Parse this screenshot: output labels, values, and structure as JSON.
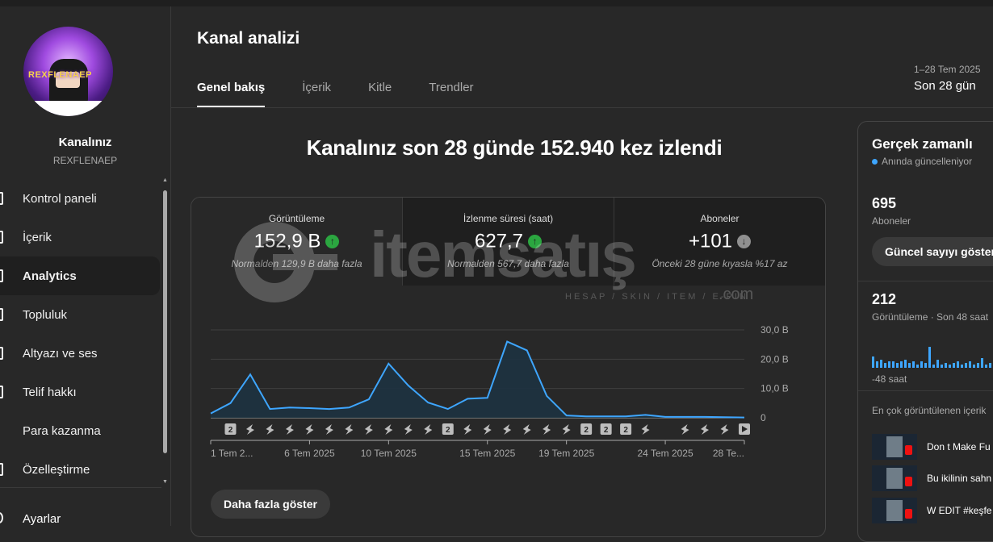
{
  "sidebar": {
    "channel_title": "Kanalınız",
    "channel_handle": "REXFLENAEP",
    "avatar_watermark": "REXFLENAEP",
    "items": [
      {
        "label": "Kontrol paneli"
      },
      {
        "label": "İçerik"
      },
      {
        "label": "Analytics"
      },
      {
        "label": "Topluluk"
      },
      {
        "label": "Altyazı ve ses"
      },
      {
        "label": "Telif hakkı"
      },
      {
        "label": "Para kazanma"
      },
      {
        "label": "Özelleştirme"
      }
    ],
    "active_item": "Analytics",
    "settings_label": "Ayarlar"
  },
  "header": {
    "title": "Kanal analizi",
    "tabs": [
      {
        "label": "Genel bakış",
        "active": true
      },
      {
        "label": "İçerik",
        "active": false
      },
      {
        "label": "Kitle",
        "active": false
      },
      {
        "label": "Trendler",
        "active": false
      }
    ],
    "date_range": "1–28 Tem 2025",
    "date_label": "Son 28 gün"
  },
  "overview": {
    "headline": "Kanalınız son 28 günde 152.940 kez izlendi",
    "metrics": [
      {
        "label": "Görüntüleme",
        "value": "152,9 B",
        "trend": "up",
        "sub": "Normalden 129,9 B daha fazla"
      },
      {
        "label": "İzlenme süresi (saat)",
        "value": "627,7",
        "trend": "up",
        "sub": "Normalden 567,7 daha fazla"
      },
      {
        "label": "Aboneler",
        "value": "+101",
        "trend": "down",
        "sub": "Önceki 28 güne kıyasla %17 az"
      }
    ],
    "more_button": "Daha fazla göster",
    "watermark": {
      "text": "itemsatış",
      "sub": "HESAP / SKIN / ITEM / E-PIN",
      "suffix": ".com"
    },
    "trend_up_glyph": "↑",
    "trend_down_glyph": "↓",
    "accent_color": "#3ea6ff",
    "up_color": "#2ba640"
  },
  "chart_data": {
    "type": "area",
    "series": [
      {
        "values": [
          1.5,
          5.0,
          14.8,
          3.0,
          3.5,
          3.3,
          3.0,
          3.5,
          6.3,
          18.5,
          11.0,
          5.2,
          3.0,
          6.5,
          6.8,
          26.0,
          23.0,
          7.5,
          0.8,
          0.5,
          0.5,
          0.5,
          1.0,
          0.3,
          0.3,
          0.3,
          0.2,
          0.1
        ]
      }
    ],
    "x_tick_labels": [
      "1 Tem 2...",
      "6 Tem 2025",
      "10 Tem 2025",
      "15 Tem 2025",
      "19 Tem 2025",
      "24 Tem 2025",
      "28 Te..."
    ],
    "x_tick_days": [
      1,
      6,
      10,
      15,
      19,
      24,
      28
    ],
    "y_ticks": [
      "30,0 B",
      "20,0 B",
      "10,0 B",
      "0"
    ],
    "ylim": [
      0,
      30
    ],
    "y_unit": "B",
    "grid": true,
    "upload_markers": [
      {
        "day": 2,
        "label": "2"
      },
      {
        "day": 3,
        "label": ""
      },
      {
        "day": 4,
        "label": ""
      },
      {
        "day": 5,
        "label": ""
      },
      {
        "day": 6,
        "label": ""
      },
      {
        "day": 7,
        "label": ""
      },
      {
        "day": 8,
        "label": ""
      },
      {
        "day": 9,
        "label": ""
      },
      {
        "day": 10,
        "label": ""
      },
      {
        "day": 11,
        "label": ""
      },
      {
        "day": 12,
        "label": ""
      },
      {
        "day": 13,
        "label": "2"
      },
      {
        "day": 14,
        "label": ""
      },
      {
        "day": 15,
        "label": ""
      },
      {
        "day": 16,
        "label": ""
      },
      {
        "day": 17,
        "label": ""
      },
      {
        "day": 18,
        "label": ""
      },
      {
        "day": 19,
        "label": ""
      },
      {
        "day": 20,
        "label": "2"
      },
      {
        "day": 21,
        "label": "2"
      },
      {
        "day": 22,
        "label": "2"
      },
      {
        "day": 23,
        "label": ""
      },
      {
        "day": 25,
        "label": ""
      },
      {
        "day": 26,
        "label": ""
      },
      {
        "day": 27,
        "label": ""
      },
      {
        "day": 28,
        "label": "play"
      }
    ]
  },
  "realtime": {
    "title": "Gerçek zamanlı",
    "live_label": "Anında güncelleniyor",
    "subscribers_value": "695",
    "subscribers_label": "Aboneler",
    "button_label": "Güncel sayıyı göster",
    "views_value": "212",
    "views_label": "Görüntüleme · Son 48 saat",
    "bars": [
      0.35,
      0.2,
      0.25,
      0.15,
      0.2,
      0.2,
      0.15,
      0.2,
      0.25,
      0.15,
      0.2,
      0.1,
      0.2,
      0.15,
      0.65,
      0.1,
      0.25,
      0.1,
      0.15,
      0.1,
      0.15,
      0.2,
      0.1,
      0.15,
      0.2,
      0.1,
      0.15,
      0.3,
      0.1,
      0.15,
      0.75,
      0.2,
      0.1,
      0.25
    ],
    "axis_label": "-48 saat",
    "top_content_label": "En çok görüntülenen içerik",
    "top_content": [
      {
        "title": "Don t Make Fu"
      },
      {
        "title": "Bu ikilinin sahn"
      },
      {
        "title": "W EDIT #keşfe"
      }
    ]
  }
}
